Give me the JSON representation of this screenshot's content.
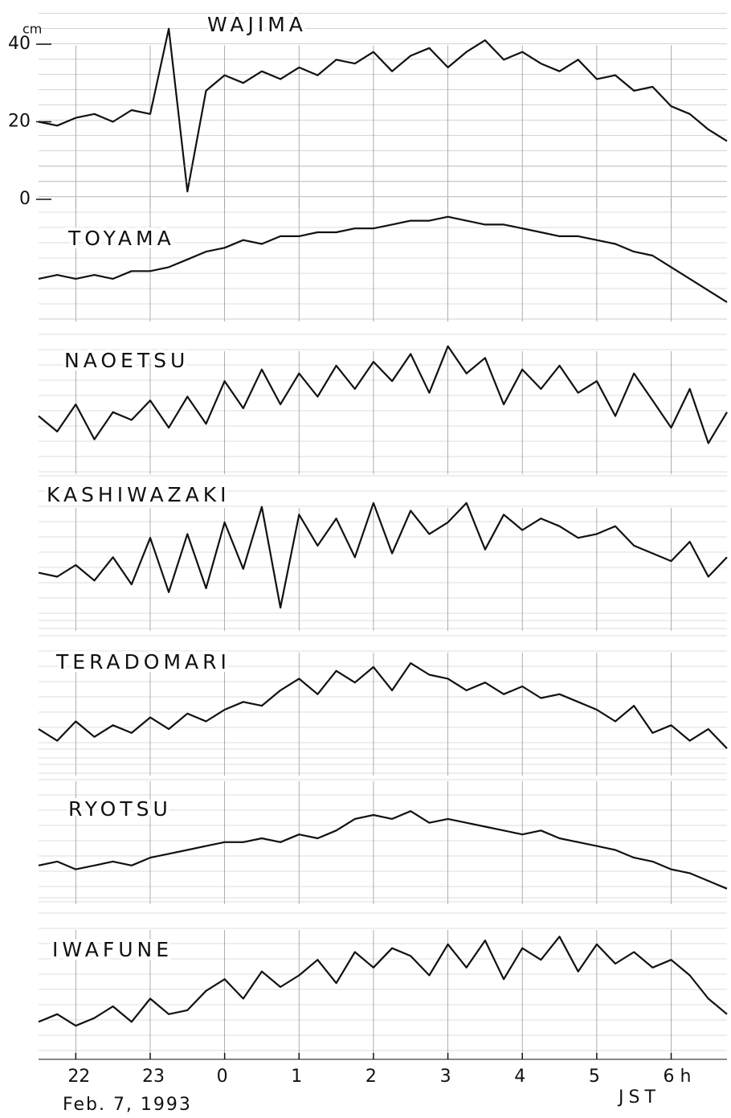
{
  "chart_data": [
    {
      "type": "line",
      "title": "WAJIMA",
      "y_label": "cm",
      "color": "#111",
      "xlim": [
        21.5,
        30.75
      ],
      "ylim": [
        -2,
        48
      ],
      "yticks": [
        0,
        20,
        40
      ],
      "x": [
        21.5,
        21.75,
        22,
        22.25,
        22.5,
        22.75,
        23,
        23.25,
        23.5,
        23.75,
        24,
        24.25,
        24.5,
        24.75,
        25,
        25.25,
        25.5,
        25.75,
        26,
        26.25,
        26.5,
        26.75,
        27,
        27.25,
        27.5,
        27.75,
        28,
        28.25,
        28.5,
        28.75,
        29,
        29.25,
        29.5,
        29.75,
        30,
        30.25,
        30.5,
        30.75
      ],
      "values": [
        20,
        19,
        21,
        22,
        20,
        23,
        22,
        44,
        2,
        28,
        32,
        30,
        33,
        31,
        34,
        32,
        36,
        35,
        38,
        33,
        37,
        39,
        34,
        38,
        41,
        36,
        38,
        35,
        33,
        36,
        31,
        32,
        28,
        29,
        24,
        22,
        18,
        15
      ]
    },
    {
      "type": "line",
      "title": "TOYAMA",
      "color": "#111",
      "xlim": [
        21.5,
        30.75
      ],
      "ylim": [
        0,
        40
      ],
      "x": [
        21.5,
        21.75,
        22,
        22.25,
        22.5,
        22.75,
        23,
        23.25,
        23.5,
        23.75,
        24,
        24.25,
        24.5,
        24.75,
        25,
        25.25,
        25.5,
        25.75,
        26,
        26.25,
        26.5,
        26.75,
        27,
        27.25,
        27.5,
        27.75,
        28,
        28.25,
        28.5,
        28.75,
        29,
        29.25,
        29.5,
        29.75,
        30,
        30.25,
        30.5,
        30.75
      ],
      "values": [
        11,
        12,
        11,
        12,
        11,
        13,
        13,
        14,
        16,
        18,
        19,
        21,
        20,
        22,
        22,
        23,
        23,
        24,
        24,
        25,
        26,
        26,
        27,
        26,
        25,
        25,
        24,
        23,
        22,
        22,
        21,
        20,
        18,
        17,
        14,
        11,
        8,
        5
      ]
    },
    {
      "type": "line",
      "title": "NAOETSU",
      "color": "#111",
      "xlim": [
        21.5,
        30.75
      ],
      "ylim": [
        0,
        40
      ],
      "x": [
        21.5,
        21.75,
        22,
        22.25,
        22.5,
        22.75,
        23,
        23.25,
        23.5,
        23.75,
        24,
        24.25,
        24.5,
        24.75,
        25,
        25.25,
        25.5,
        25.75,
        26,
        26.25,
        26.5,
        26.75,
        27,
        27.25,
        27.5,
        27.75,
        28,
        28.25,
        28.5,
        28.75,
        29,
        29.25,
        29.5,
        29.75,
        30,
        30.25,
        30.5,
        30.75
      ],
      "values": [
        15,
        11,
        18,
        9,
        16,
        14,
        19,
        12,
        20,
        13,
        24,
        17,
        27,
        18,
        26,
        20,
        28,
        22,
        29,
        24,
        31,
        21,
        33,
        26,
        30,
        18,
        27,
        22,
        28,
        21,
        24,
        15,
        26,
        19,
        12,
        22,
        8,
        16
      ]
    },
    {
      "type": "line",
      "title": "KASHIWAZAKI",
      "color": "#111",
      "xlim": [
        21.5,
        30.75
      ],
      "ylim": [
        0,
        40
      ],
      "x": [
        21.5,
        21.75,
        22,
        22.25,
        22.5,
        22.75,
        23,
        23.25,
        23.5,
        23.75,
        24,
        24.25,
        24.5,
        24.75,
        25,
        25.25,
        25.5,
        25.75,
        26,
        26.25,
        26.5,
        26.75,
        27,
        27.25,
        27.5,
        27.75,
        28,
        28.25,
        28.5,
        28.75,
        29,
        29.25,
        29.5,
        29.75,
        30,
        30.25,
        30.5,
        30.75
      ],
      "values": [
        15,
        14,
        17,
        13,
        19,
        12,
        24,
        10,
        25,
        11,
        28,
        16,
        32,
        6,
        30,
        22,
        29,
        19,
        33,
        20,
        31,
        25,
        28,
        33,
        21,
        30,
        26,
        29,
        27,
        24,
        25,
        27,
        22,
        20,
        18,
        23,
        14,
        19
      ]
    },
    {
      "type": "line",
      "title": "TERADOMARI",
      "color": "#111",
      "xlim": [
        21.5,
        30.75
      ],
      "ylim": [
        0,
        40
      ],
      "x": [
        21.5,
        21.75,
        22,
        22.25,
        22.5,
        22.75,
        23,
        23.25,
        23.5,
        23.75,
        24,
        24.25,
        24.5,
        24.75,
        25,
        25.25,
        25.5,
        25.75,
        26,
        26.25,
        26.5,
        26.75,
        27,
        27.25,
        27.5,
        27.75,
        28,
        28.25,
        28.5,
        28.75,
        29,
        29.25,
        29.5,
        29.75,
        30,
        30.25,
        30.5,
        30.75
      ],
      "values": [
        12,
        9,
        14,
        10,
        13,
        11,
        15,
        12,
        16,
        14,
        17,
        19,
        18,
        22,
        25,
        21,
        27,
        24,
        28,
        22,
        29,
        26,
        25,
        22,
        24,
        21,
        23,
        20,
        21,
        19,
        17,
        14,
        18,
        11,
        13,
        9,
        12,
        7
      ]
    },
    {
      "type": "line",
      "title": "RYOTSU",
      "color": "#111",
      "xlim": [
        21.5,
        30.75
      ],
      "ylim": [
        0,
        40
      ],
      "x": [
        21.5,
        21.75,
        22,
        22.25,
        22.5,
        22.75,
        23,
        23.25,
        23.5,
        23.75,
        24,
        24.25,
        24.5,
        24.75,
        25,
        25.25,
        25.5,
        25.75,
        26,
        26.25,
        26.5,
        26.75,
        27,
        27.25,
        27.5,
        27.75,
        28,
        28.25,
        28.5,
        28.75,
        29,
        29.25,
        29.5,
        29.75,
        30,
        30.25,
        30.5,
        30.75
      ],
      "values": [
        10,
        11,
        9,
        10,
        11,
        10,
        12,
        13,
        14,
        15,
        16,
        16,
        17,
        16,
        18,
        17,
        19,
        22,
        23,
        22,
        24,
        21,
        22,
        21,
        20,
        19,
        18,
        19,
        17,
        16,
        15,
        14,
        12,
        11,
        9,
        8,
        6,
        4
      ]
    },
    {
      "type": "line",
      "title": "IWAFUNE",
      "color": "#111",
      "xlim": [
        21.5,
        30.75
      ],
      "ylim": [
        0,
        40
      ],
      "x_label": "JST",
      "date": "Feb. 7, 1993",
      "xticks": [
        {
          "value": 22,
          "label": "22"
        },
        {
          "value": 23,
          "label": "23"
        },
        {
          "value": 24,
          "label": "0"
        },
        {
          "value": 25,
          "label": "1"
        },
        {
          "value": 26,
          "label": "2"
        },
        {
          "value": 27,
          "label": "3"
        },
        {
          "value": 28,
          "label": "4"
        },
        {
          "value": 29,
          "label": "5"
        },
        {
          "value": 30,
          "label": "6 h"
        }
      ],
      "x": [
        21.5,
        21.75,
        22,
        22.25,
        22.5,
        22.75,
        23,
        23.25,
        23.5,
        23.75,
        24,
        24.25,
        24.5,
        24.75,
        25,
        25.25,
        25.5,
        25.75,
        26,
        26.25,
        26.5,
        26.75,
        27,
        27.25,
        27.5,
        27.75,
        28,
        28.25,
        28.5,
        28.75,
        29,
        29.25,
        29.5,
        29.75,
        30,
        30.25,
        30.5,
        30.75
      ],
      "values": [
        8,
        10,
        7,
        9,
        12,
        8,
        14,
        10,
        11,
        16,
        19,
        14,
        21,
        17,
        20,
        24,
        18,
        26,
        22,
        27,
        25,
        20,
        28,
        22,
        29,
        19,
        27,
        24,
        30,
        21,
        28,
        23,
        26,
        22,
        24,
        20,
        14,
        10
      ]
    }
  ]
}
